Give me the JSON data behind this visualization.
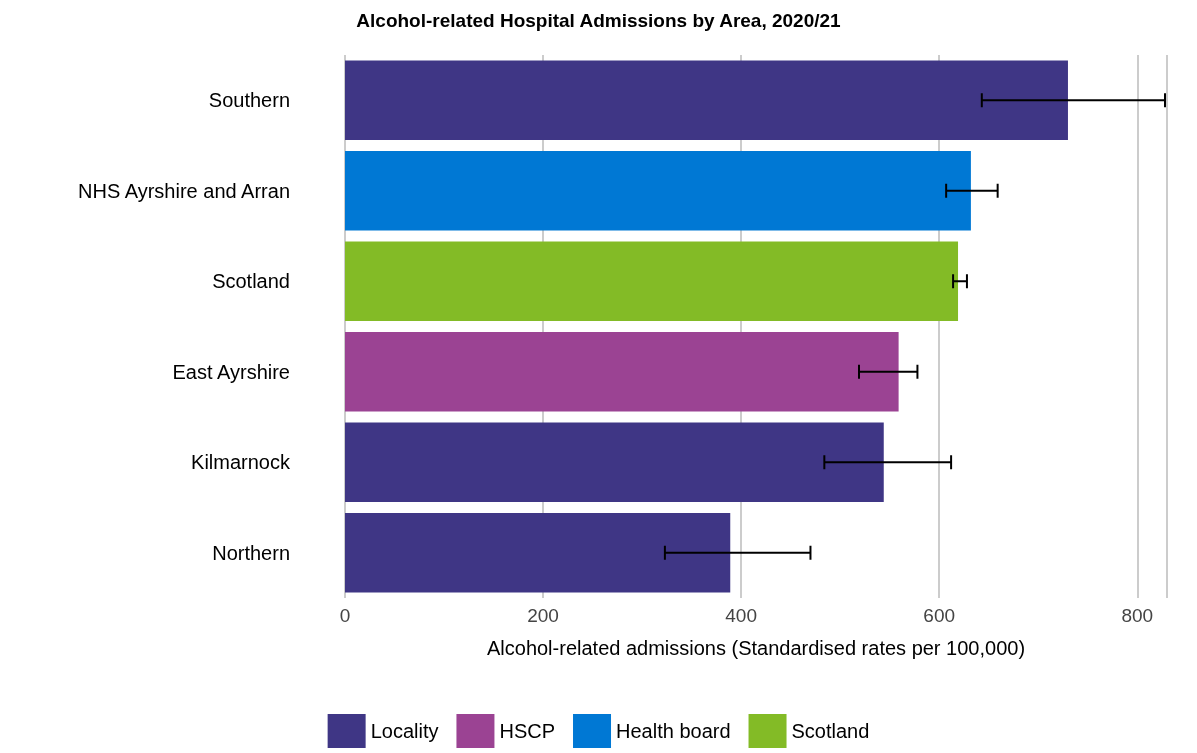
{
  "chart_data": {
    "type": "bar",
    "orientation": "horizontal",
    "stacked": true,
    "title": "Alcohol-related Hospital Admissions by Area, 2020/21",
    "xlabel": "Alcohol-related admissions (Standardised rates per 100,000)",
    "categories": [
      "Southern",
      "NHS Ayrshire and Arran",
      "Scotland",
      "East Ayrshire",
      "Kilmarnock",
      "Northern"
    ],
    "series": [
      {
        "name": "Locality",
        "color": "#3f3685",
        "values": [
          730,
          null,
          null,
          null,
          544,
          389
        ],
        "errors": [
          [
            643,
            828
          ],
          null,
          null,
          null,
          [
            484,
            612
          ],
          [
            323,
            470
          ]
        ]
      },
      {
        "name": "HSCP",
        "color": "#9b4393",
        "values": [
          null,
          null,
          null,
          559,
          null,
          null
        ],
        "errors": [
          null,
          null,
          null,
          [
            519,
            578
          ],
          null,
          null
        ]
      },
      {
        "name": "Health board",
        "color": "#0078d4",
        "values": [
          null,
          632,
          null,
          null,
          null,
          null
        ],
        "errors": [
          null,
          [
            607,
            659
          ],
          null,
          null,
          null,
          null
        ]
      },
      {
        "name": "Scotland",
        "color": "#83bb26",
        "values": [
          null,
          null,
          619,
          null,
          null,
          null
        ],
        "errors": [
          null,
          null,
          [
            614,
            628
          ],
          null,
          null,
          null
        ]
      }
    ],
    "xlim": [
      0,
      830
    ],
    "xticks": [
      0,
      200,
      400,
      600,
      800
    ],
    "grid": "x",
    "legend": "bottom"
  }
}
